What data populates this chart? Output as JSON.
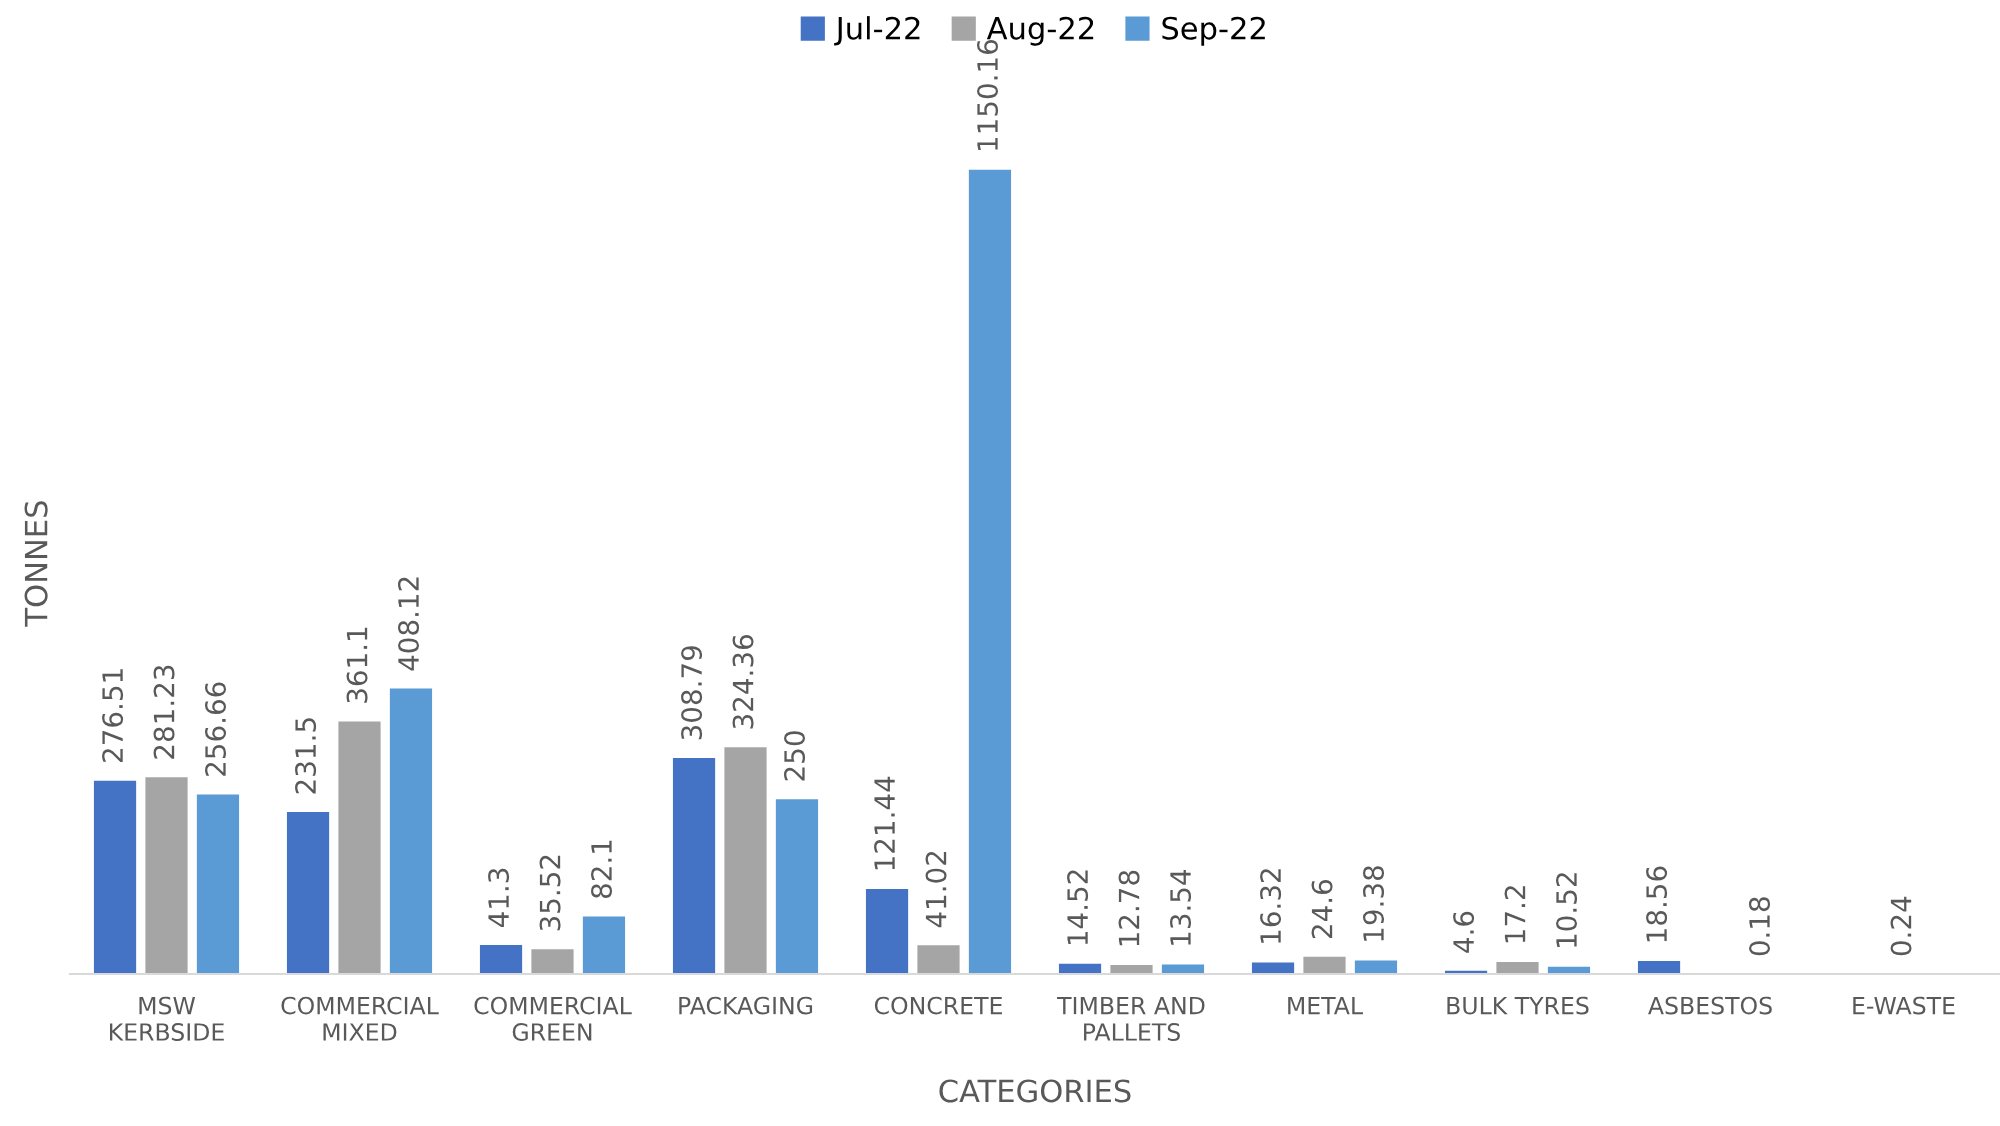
{
  "chart_data": {
    "type": "bar",
    "xlabel": "CATEGORIES",
    "ylabel": "TONNES",
    "categories": [
      "MSW\nKERBSIDE",
      "COMMERCIAL\nMIXED",
      "COMMERCIAL\nGREEN",
      "PACKAGING",
      "CONCRETE",
      "TIMBER AND\nPALLETS",
      "METAL",
      "BULK TYRES",
      "ASBESTOS",
      "E-WASTE"
    ],
    "series": [
      {
        "name": "Jul-22",
        "color": "#4472c4",
        "values": [
          276.51,
          231.5,
          41.3,
          308.79,
          121.44,
          14.52,
          16.32,
          4.6,
          18.56,
          null
        ]
      },
      {
        "name": "Aug-22",
        "color": "#a5a5a5",
        "values": [
          281.23,
          361.1,
          35.52,
          324.36,
          41.02,
          12.78,
          24.6,
          17.2,
          null,
          0.24
        ]
      },
      {
        "name": "Sep-22",
        "color": "#5b9bd5",
        "values": [
          256.66,
          408.12,
          82.1,
          250,
          1150.16,
          13.54,
          19.38,
          10.52,
          0.18,
          null
        ]
      }
    ],
    "data_labels": true,
    "legend": "top",
    "grid": false,
    "tick_labels": "x"
  }
}
